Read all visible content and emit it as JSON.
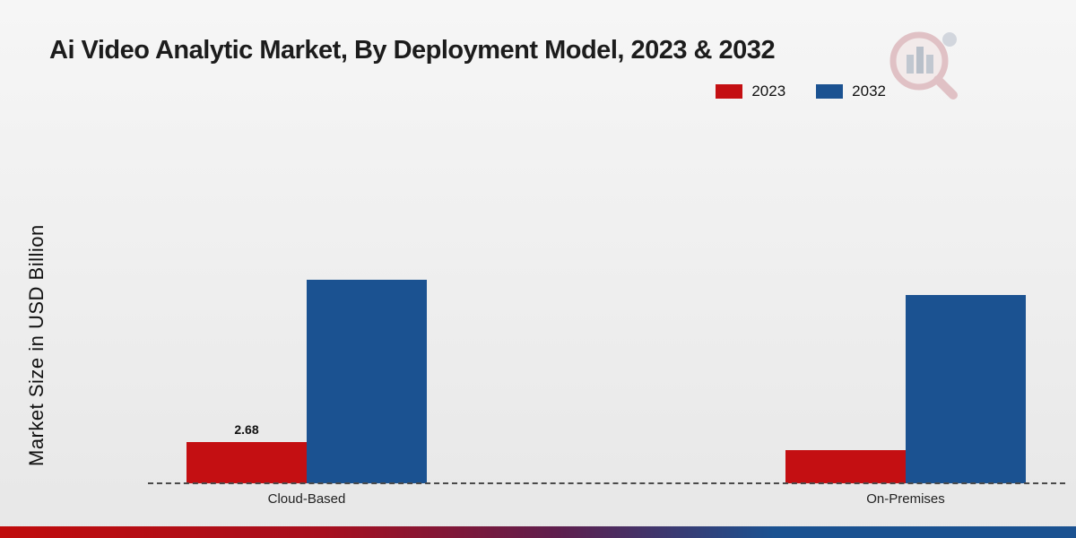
{
  "page": {
    "title": "Ai Video Analytic Market, By Deployment Model, 2023 & 2032"
  },
  "legend": [
    {
      "label": "2023",
      "color": "#c40f12"
    },
    {
      "label": "2032",
      "color": "#1b5291"
    }
  ],
  "chart_data": {
    "type": "bar",
    "title": "Ai Video Analytic Market, By Deployment Model, 2023 & 2032",
    "categories": [
      "Cloud-Based",
      "On-Premises"
    ],
    "series": [
      {
        "name": "2023",
        "color": "#c40f12",
        "values": [
          2.68,
          2.15
        ],
        "labels": [
          "2.68",
          ""
        ]
      },
      {
        "name": "2032",
        "color": "#1b5291",
        "values": [
          13.2,
          12.2
        ],
        "labels": [
          "",
          ""
        ]
      }
    ],
    "xlabel": "",
    "ylabel": "Market Size in USD Billion",
    "ylim": [
      0,
      24.4
    ],
    "grid": false,
    "legend_position": "top-right",
    "baseline_style": "dashed"
  },
  "colors": {
    "accent_red": "#c40f12",
    "accent_blue": "#1b5291",
    "background_top": "#f6f6f6",
    "background_bottom": "#e7e7e7"
  }
}
